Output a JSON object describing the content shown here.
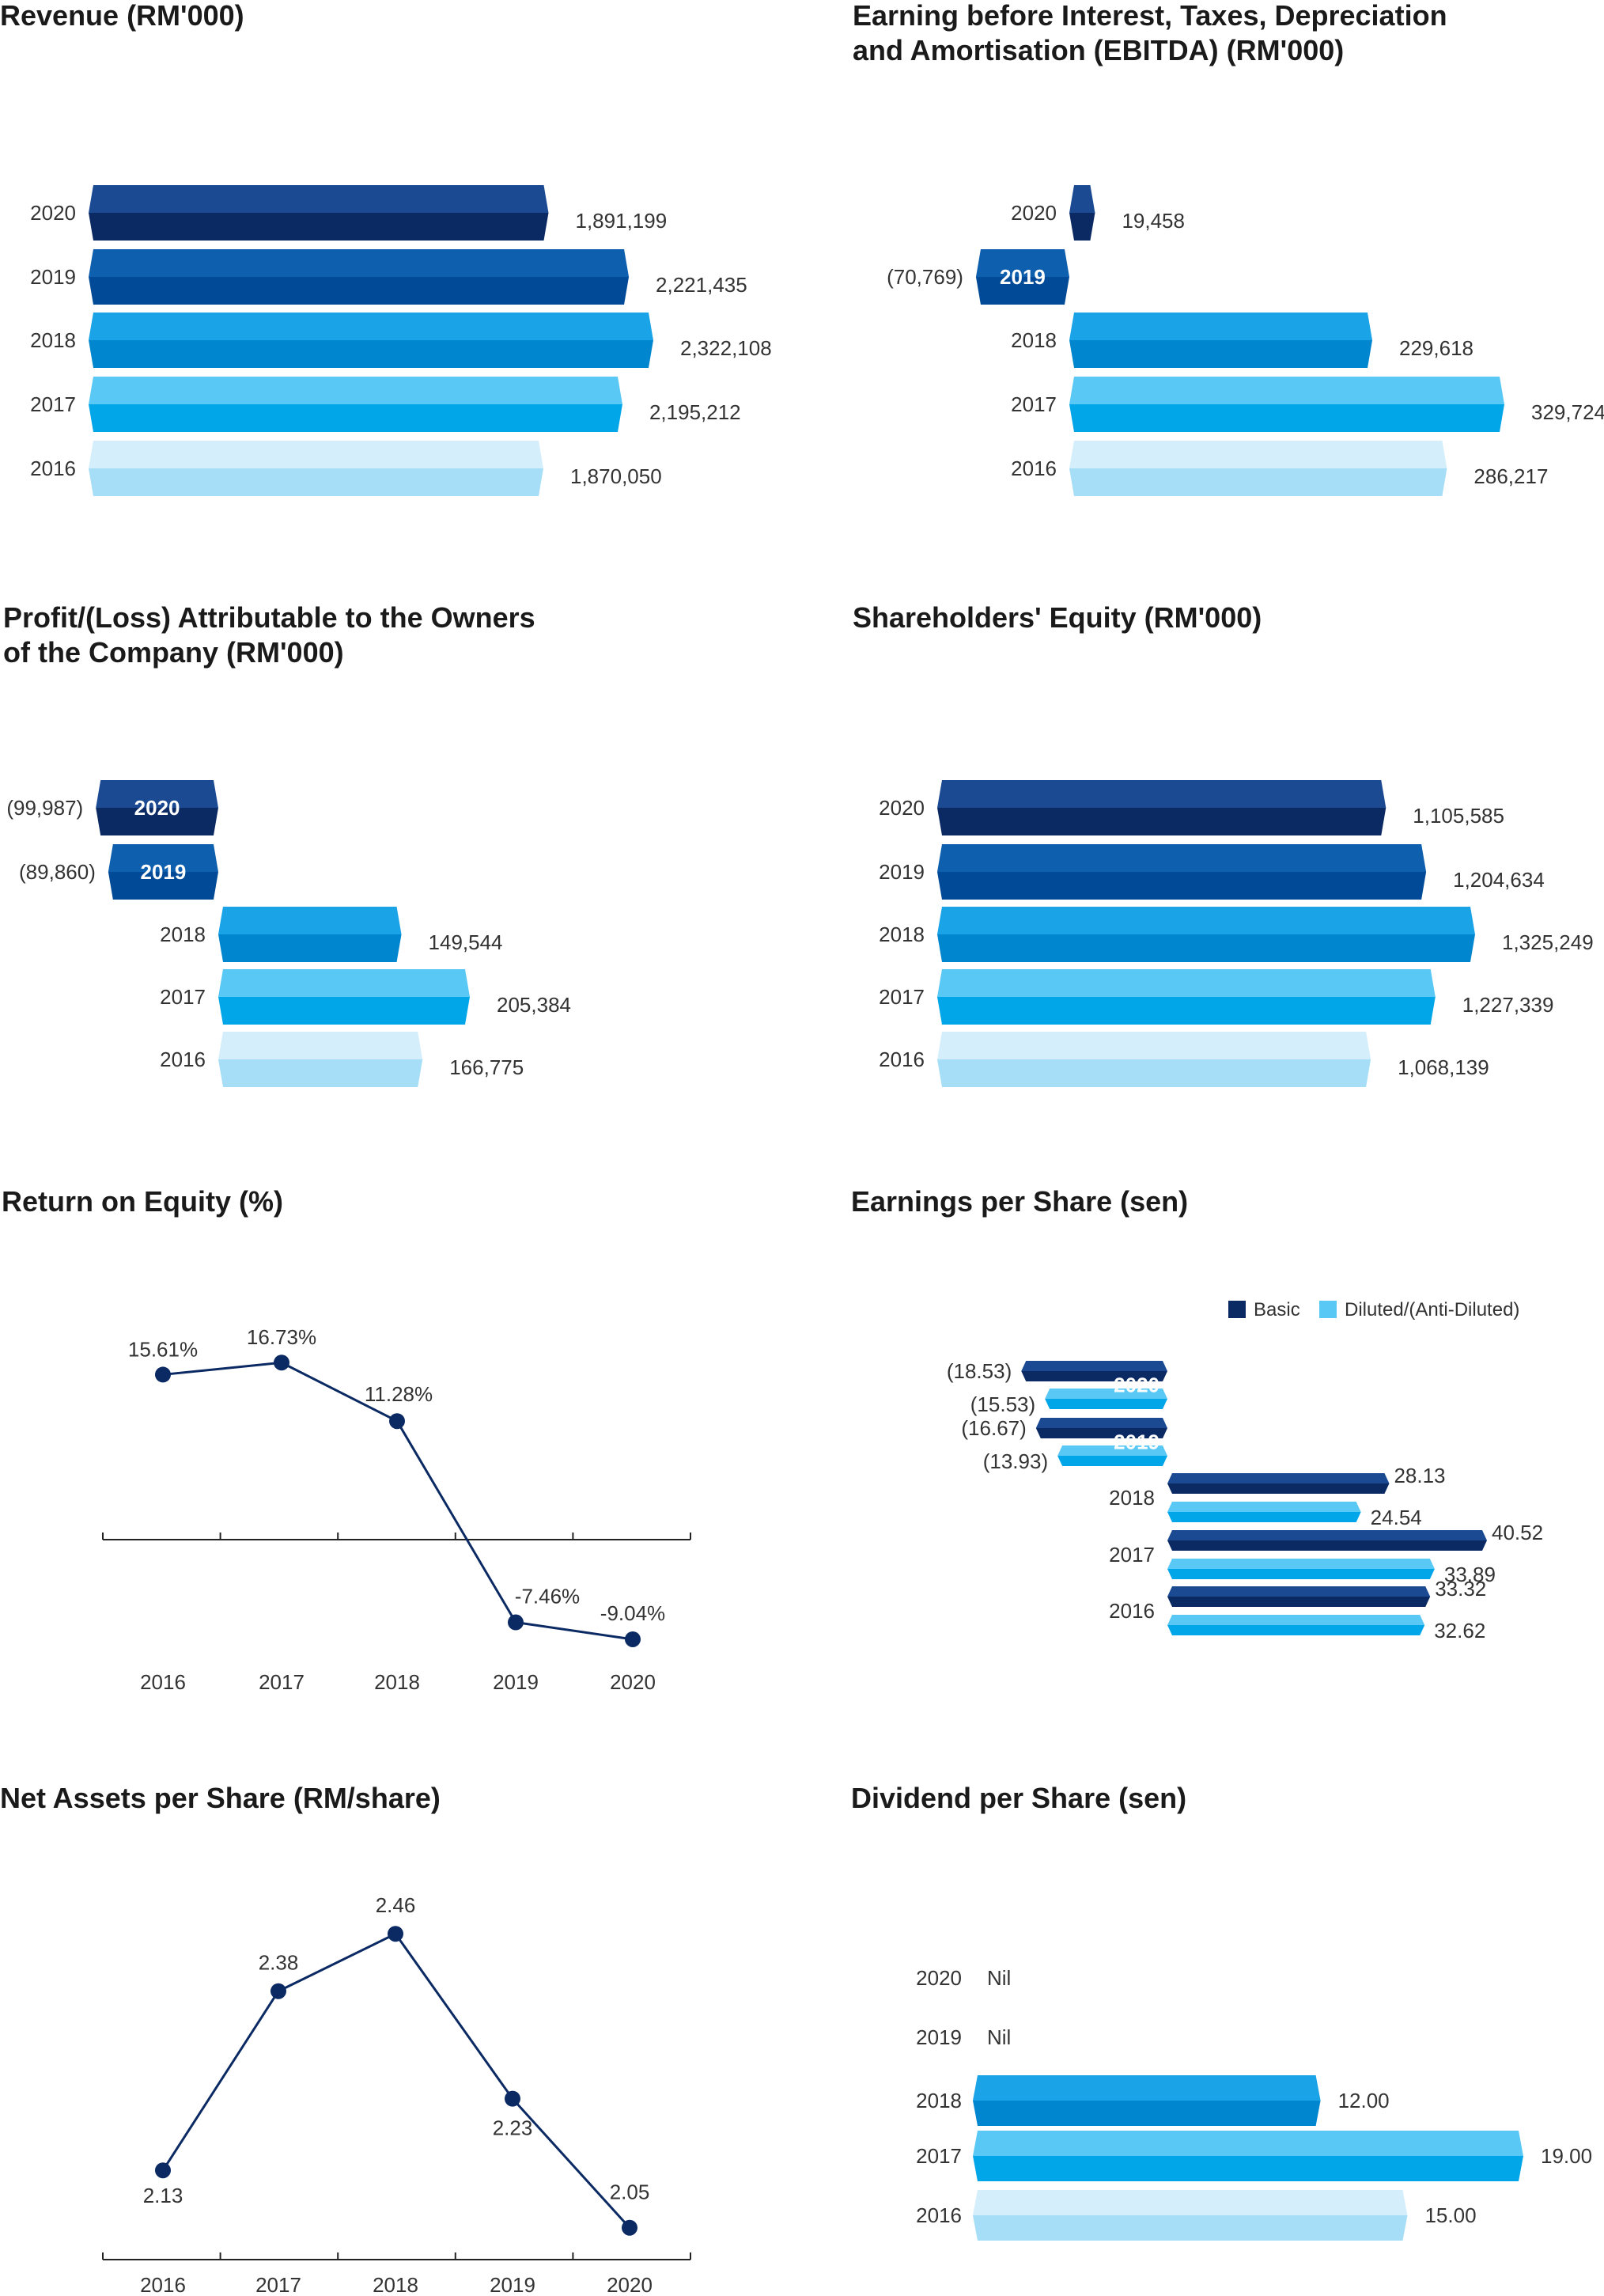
{
  "colors": {
    "2020": [
      "#1b4a93",
      "#0b2a63"
    ],
    "2019": [
      "#0e5fae",
      "#004a97"
    ],
    "2018": [
      "#1aa3e6",
      "#0086cf"
    ],
    "2017": [
      "#5ac8f5",
      "#00a6e8"
    ],
    "2016": [
      "#d4effb",
      "#a6def7"
    ],
    "basic": [
      "#1b4a93",
      "#0b2a63"
    ],
    "diluted": [
      "#5ac8f5",
      "#00a6e8"
    ],
    "line": "#0b2a63"
  },
  "chart_data": [
    {
      "id": "revenue",
      "type": "bar",
      "orientation": "horizontal",
      "title": [
        "Revenue (RM'000)"
      ],
      "categories": [
        "2020",
        "2019",
        "2018",
        "2017",
        "2016"
      ],
      "values": [
        1891199,
        2221435,
        2322108,
        2195212,
        1870050
      ],
      "value_labels": [
        "1,891,199",
        "2,221,435",
        "2,322,108",
        "2,195,212",
        "1,870,050"
      ]
    },
    {
      "id": "ebitda",
      "type": "bar",
      "orientation": "horizontal",
      "title": [
        "Earning before Interest, Taxes, Depreciation",
        "and Amortisation (EBITDA) (RM'000)"
      ],
      "categories": [
        "2020",
        "2019",
        "2018",
        "2017",
        "2016"
      ],
      "values": [
        19458,
        -70769,
        229618,
        329724,
        286217
      ],
      "value_labels": [
        "19,458",
        "(70,769)",
        "229,618",
        "329,724",
        "286,217"
      ]
    },
    {
      "id": "profit",
      "type": "bar",
      "orientation": "horizontal",
      "title": [
        "Profit/(Loss) Attributable to the Owners",
        "of the Company (RM'000)"
      ],
      "categories": [
        "2020",
        "2019",
        "2018",
        "2017",
        "2016"
      ],
      "values": [
        -99987,
        -89860,
        149544,
        205384,
        166775
      ],
      "value_labels": [
        "(99,987)",
        "(89,860)",
        "149,544",
        "205,384",
        "166,775"
      ]
    },
    {
      "id": "equity",
      "type": "bar",
      "orientation": "horizontal",
      "title": [
        "Shareholders' Equity (RM'000)"
      ],
      "categories": [
        "2020",
        "2019",
        "2018",
        "2017",
        "2016"
      ],
      "values": [
        1105585,
        1204634,
        1325249,
        1227339,
        1068139
      ],
      "value_labels": [
        "1,105,585",
        "1,204,634",
        "1,325,249",
        "1,227,339",
        "1,068,139"
      ]
    },
    {
      "id": "roe",
      "type": "line",
      "title": [
        "Return on Equity (%)"
      ],
      "x": [
        "2016",
        "2017",
        "2018",
        "2019",
        "2020"
      ],
      "values": [
        15.61,
        16.73,
        11.28,
        -7.46,
        -9.04
      ],
      "value_labels": [
        "15.61%",
        "16.73%",
        "11.28%",
        "-7.46%",
        "-9.04%"
      ],
      "ylim": [
        -10,
        18
      ]
    },
    {
      "id": "eps",
      "type": "bar",
      "orientation": "horizontal",
      "title": [
        "Earnings per Share (sen)"
      ],
      "legend": [
        "Basic",
        "Diluted/(Anti-Diluted)"
      ],
      "categories": [
        "2020",
        "2019",
        "2018",
        "2017",
        "2016"
      ],
      "series": [
        {
          "name": "Basic",
          "values": [
            -18.53,
            -16.67,
            28.13,
            40.52,
            33.32
          ],
          "value_labels": [
            "(18.53)",
            "(16.67)",
            "28.13",
            "40.52",
            "33.32"
          ]
        },
        {
          "name": "Diluted/(Anti-Diluted)",
          "values": [
            -15.53,
            -13.93,
            24.54,
            33.89,
            32.62
          ],
          "value_labels": [
            "(15.53)",
            "(13.93)",
            "24.54",
            "33.89",
            "32.62"
          ]
        }
      ]
    },
    {
      "id": "nas",
      "type": "line",
      "title": [
        "Net Assets per Share (RM/share)"
      ],
      "x": [
        "2016",
        "2017",
        "2018",
        "2019",
        "2020"
      ],
      "values": [
        2.13,
        2.38,
        2.46,
        2.23,
        2.05
      ],
      "value_labels": [
        "2.13",
        "2.38",
        "2.46",
        "2.23",
        "2.05"
      ],
      "ylim": [
        2.0,
        2.5
      ]
    },
    {
      "id": "dps",
      "type": "bar",
      "orientation": "horizontal",
      "title": [
        "Dividend per Share (sen)"
      ],
      "categories": [
        "2020",
        "2019",
        "2018",
        "2017",
        "2016"
      ],
      "values": [
        0,
        0,
        12.0,
        19.0,
        15.0
      ],
      "value_labels": [
        "Nil",
        "Nil",
        "12.00",
        "19.00",
        "15.00"
      ]
    }
  ]
}
